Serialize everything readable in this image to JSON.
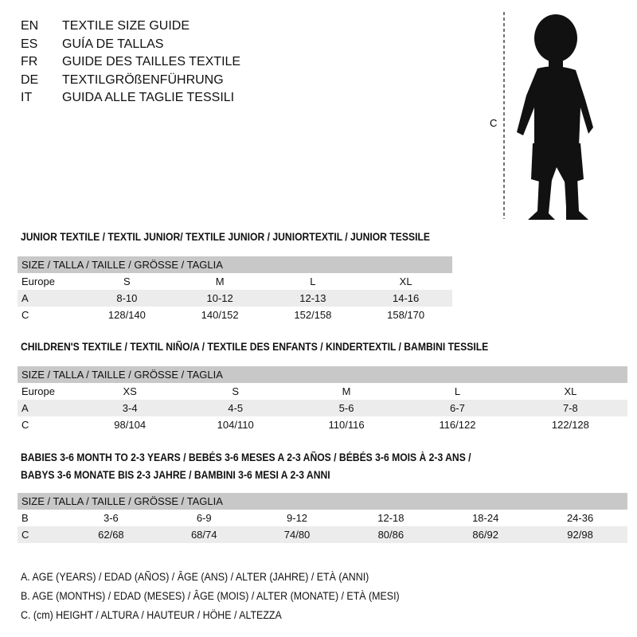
{
  "languages": [
    {
      "code": "EN",
      "title": "TEXTILE SIZE GUIDE"
    },
    {
      "code": "ES",
      "title": "GUÍA DE TALLAS"
    },
    {
      "code": "FR",
      "title": "GUIDE DES TAILLES TEXTILE"
    },
    {
      "code": "DE",
      "title": "TEXTILGRÖßENFÜHRUNG"
    },
    {
      "code": "IT",
      "title": "GUIDA ALLE TAGLIE TESSILI"
    }
  ],
  "figure": {
    "measure_label": "C",
    "icon": "child-silhouette"
  },
  "size_header": "SIZE / TALLA / TAILLE / GRÖSSE / TAGLIA",
  "junior": {
    "title": "JUNIOR TEXTILE / TEXTIL JUNIOR/ TEXTILE JUNIOR / JUNIORTEXTIL / JUNIOR TESSILE",
    "rows": [
      [
        "Europe",
        "S",
        "M",
        "L",
        "XL"
      ],
      [
        "A",
        "8-10",
        "10-12",
        "12-13",
        "14-16"
      ],
      [
        "C",
        "128/140",
        "140/152",
        "152/158",
        "158/170"
      ]
    ]
  },
  "children": {
    "title": "CHILDREN'S TEXTILE / TEXTIL NIÑO/A / TEXTILE DES ENFANTS / KINDERTEXTIL / BAMBINI TESSILE",
    "rows": [
      [
        "Europe",
        "XS",
        "S",
        "M",
        "L",
        "XL"
      ],
      [
        "A",
        "3-4",
        "4-5",
        "5-6",
        "6-7",
        "7-8"
      ],
      [
        "C",
        "98/104",
        "104/110",
        "110/116",
        "116/122",
        "122/128"
      ]
    ]
  },
  "babies": {
    "title_line1": "BABIES 3-6 MONTH TO 2-3 YEARS / BEBÉS 3-6 MESES A 2-3 AÑOS / BÉBÉS 3-6 MOIS À 2-3 ANS /",
    "title_line2": "BABYS 3-6 MONATE BIS 2-3 JAHRE / BAMBINI 3-6 MESI A 2-3 ANNI",
    "rows": [
      [
        "B",
        "3-6",
        "6-9",
        "9-12",
        "12-18",
        "18-24",
        "24-36"
      ],
      [
        "C",
        "62/68",
        "68/74",
        "74/80",
        "80/86",
        "86/92",
        "92/98"
      ]
    ]
  },
  "legend": [
    "A. AGE (YEARS) / EDAD (AÑOS) / ÂGE (ANS) / ALTER (JAHRE) / ETÀ (ANNI)",
    "B. AGE (MONTHS) / EDAD (MESES) / ÂGE (MOIS) / ALTER (MONATE) / ETÀ (MESI)",
    "C. (cm) HEIGHT / ALTURA / HAUTEUR / HÖHE / ALTEZZA"
  ]
}
